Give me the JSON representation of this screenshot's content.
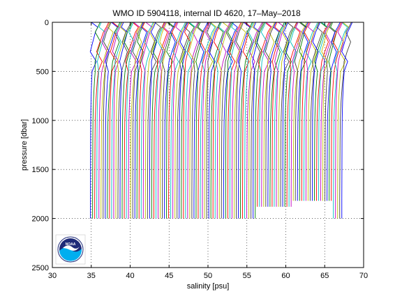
{
  "chart_data": {
    "type": "line",
    "title": "WMO ID 5904118, internal ID 4620, 17–May–2018",
    "xlabel": "salinity [psu]",
    "ylabel": "pressure [dbar]",
    "xlim": [
      30,
      70
    ],
    "ylim": [
      2500,
      0
    ],
    "y_reversed": true,
    "x_ticks": [
      30,
      35,
      40,
      45,
      50,
      55,
      60,
      65,
      70
    ],
    "y_ticks": [
      0,
      500,
      1000,
      1500,
      2000,
      2500
    ],
    "x_tick_labels": [
      "30",
      "35",
      "40",
      "45",
      "50",
      "55",
      "60",
      "65",
      "70"
    ],
    "y_tick_labels": [
      "0",
      "500",
      "1000",
      "1500",
      "2000",
      "2500"
    ],
    "grid": "dotted",
    "legend": "none",
    "note": "waterfall of salinity profiles; each successive profile offset along the x axis",
    "series_profile": {
      "count": 120,
      "first_deep_salinity": 34.9,
      "last_deep_salinity": 67.2,
      "pressure_levels": [
        0,
        50,
        100,
        200,
        300,
        400,
        500,
        600,
        700,
        800,
        900,
        1000,
        1200,
        1400,
        1600,
        1800,
        2000
      ],
      "relative_shape": [
        1.0,
        0.95,
        0.85,
        0.7,
        0.55,
        0.45,
        0.35,
        0.25,
        0.18,
        0.12,
        0.08,
        0.05,
        0.03,
        0.02,
        0.01,
        0.0,
        0.0
      ],
      "max_pressures_by_range": [
        {
          "from_index": 0,
          "to_index": 78,
          "max_pressure": 2000
        },
        {
          "from_index": 79,
          "to_index": 95,
          "max_pressure": 1880
        },
        {
          "from_index": 96,
          "to_index": 114,
          "max_pressure": 1820
        },
        {
          "from_index": 115,
          "to_index": 119,
          "max_pressure": 2000
        }
      ]
    },
    "colors": [
      "#0000ff",
      "#008000",
      "#ff0000",
      "#00bfbf",
      "#bf00bf",
      "#bfbf00",
      "#404040"
    ]
  },
  "logo": {
    "text": "NOAA",
    "colors": {
      "sky": "#1e2a78",
      "sea": "#00aeef",
      "bird": "#ffffff"
    }
  }
}
